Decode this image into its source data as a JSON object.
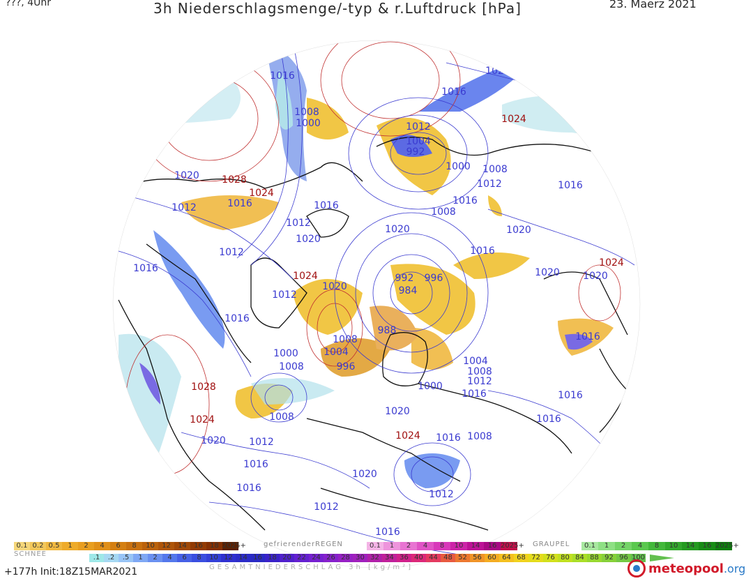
{
  "header": {
    "left": "???, 4Uhr",
    "title": "3h Niederschlagsmenge/-typ & r.Luftdruck [hPa]",
    "date": "23. Maerz 2021"
  },
  "pressure_labels": [
    {
      "t": "1016",
      "c": "#3a3ad0"
    },
    {
      "t": "1008",
      "c": "#3a3ad0"
    },
    {
      "t": "1000",
      "c": "#3a3ad0"
    },
    {
      "t": "1020",
      "c": "#3a3ad0"
    },
    {
      "t": "1016",
      "c": "#3a3ad0"
    },
    {
      "t": "1024",
      "c": "#a01010"
    },
    {
      "t": "1012",
      "c": "#3a3ad0"
    },
    {
      "t": "1004",
      "c": "#3a3ad0"
    },
    {
      "t": "992",
      "c": "#3a3ad0"
    },
    {
      "t": "1000",
      "c": "#3a3ad0"
    },
    {
      "t": "1008",
      "c": "#3a3ad0"
    },
    {
      "t": "1012",
      "c": "#3a3ad0"
    },
    {
      "t": "1016",
      "c": "#3a3ad0"
    },
    {
      "t": "1008",
      "c": "#3a3ad0"
    },
    {
      "t": "1016",
      "c": "#3a3ad0"
    },
    {
      "t": "1020",
      "c": "#3a3ad0"
    },
    {
      "t": "1028",
      "c": "#a01010"
    },
    {
      "t": "1024",
      "c": "#a01010"
    },
    {
      "t": "1016",
      "c": "#3a3ad0"
    },
    {
      "t": "1012",
      "c": "#3a3ad0"
    },
    {
      "t": "1016",
      "c": "#3a3ad0"
    },
    {
      "t": "1012",
      "c": "#3a3ad0"
    },
    {
      "t": "1020",
      "c": "#3a3ad0"
    },
    {
      "t": "1020",
      "c": "#3a3ad0"
    },
    {
      "t": "1016",
      "c": "#3a3ad0"
    },
    {
      "t": "1012",
      "c": "#3a3ad0"
    },
    {
      "t": "1016",
      "c": "#3a3ad0"
    },
    {
      "t": "1012",
      "c": "#3a3ad0"
    },
    {
      "t": "1024",
      "c": "#a01010"
    },
    {
      "t": "1020",
      "c": "#3a3ad0"
    },
    {
      "t": "992",
      "c": "#3a3ad0"
    },
    {
      "t": "996",
      "c": "#3a3ad0"
    },
    {
      "t": "984",
      "c": "#3a3ad0"
    },
    {
      "t": "1020",
      "c": "#3a3ad0"
    },
    {
      "t": "1020",
      "c": "#3a3ad0"
    },
    {
      "t": "1024",
      "c": "#a01010"
    },
    {
      "t": "1016",
      "c": "#3a3ad0"
    },
    {
      "t": "1020",
      "c": "#3a3ad0"
    },
    {
      "t": "1016",
      "c": "#3a3ad0"
    },
    {
      "t": "1008",
      "c": "#3a3ad0"
    },
    {
      "t": "1004",
      "c": "#3a3ad0"
    },
    {
      "t": "996",
      "c": "#3a3ad0"
    },
    {
      "t": "988",
      "c": "#3a3ad0"
    },
    {
      "t": "1000",
      "c": "#3a3ad0"
    },
    {
      "t": "1008",
      "c": "#3a3ad0"
    },
    {
      "t": "1004",
      "c": "#3a3ad0"
    },
    {
      "t": "1008",
      "c": "#3a3ad0"
    },
    {
      "t": "1012",
      "c": "#3a3ad0"
    },
    {
      "t": "1000",
      "c": "#3a3ad0"
    },
    {
      "t": "1016",
      "c": "#3a3ad0"
    },
    {
      "t": "1016",
      "c": "#3a3ad0"
    },
    {
      "t": "1016",
      "c": "#3a3ad0"
    },
    {
      "t": "1028",
      "c": "#a01010"
    },
    {
      "t": "1024",
      "c": "#a01010"
    },
    {
      "t": "1008",
      "c": "#3a3ad0"
    },
    {
      "t": "1020",
      "c": "#3a3ad0"
    },
    {
      "t": "1020",
      "c": "#3a3ad0"
    },
    {
      "t": "1012",
      "c": "#3a3ad0"
    },
    {
      "t": "1024",
      "c": "#a01010"
    },
    {
      "t": "1016",
      "c": "#3a3ad0"
    },
    {
      "t": "1008",
      "c": "#3a3ad0"
    },
    {
      "t": "1016",
      "c": "#3a3ad0"
    },
    {
      "t": "1016",
      "c": "#3a3ad0"
    },
    {
      "t": "1020",
      "c": "#3a3ad0"
    },
    {
      "t": "1012",
      "c": "#3a3ad0"
    },
    {
      "t": "1012",
      "c": "#3a3ad0"
    },
    {
      "t": "1016",
      "c": "#3a3ad0"
    }
  ],
  "legend": {
    "snow_label": "SCHNEE",
    "snow_values": [
      "0.1",
      "0.2",
      "0.5",
      "1",
      "2",
      "4",
      "6",
      "8",
      "10",
      "12",
      "14",
      "16",
      "18",
      "2025+"
    ],
    "snow_colors": [
      "#f5d67a",
      "#f2c75a",
      "#f0b840",
      "#eeab2a",
      "#e89e20",
      "#e08f18",
      "#d47f12",
      "#c8700e",
      "#bb620b",
      "#ae5509",
      "#a04806",
      "#923b04",
      "#843003",
      "#5a2002"
    ],
    "freezing_label": "gefrierenderREGEN",
    "freezing_values": [
      "0.1",
      "1",
      "2",
      "4",
      "8",
      "10",
      "14",
      "16",
      "2025+"
    ],
    "freezing_colors": [
      "#f4b4e6",
      "#ee94dc",
      "#e874d2",
      "#e054c6",
      "#d838ba",
      "#cc24a8",
      "#bc1296",
      "#a80884",
      "#c0104a"
    ],
    "graupel_label": "GRAUPEL",
    "graupel_values": [
      "0.1",
      "1",
      "2",
      "4",
      "8",
      "10",
      "14",
      "16",
      "2025+"
    ],
    "graupel_colors": [
      "#a8e8a0",
      "#8ee084",
      "#74d468",
      "#5ac84e",
      "#42b83a",
      "#32a82c",
      "#249a20",
      "#188c16",
      "#0e7e0e"
    ],
    "total_values": [
      ".1",
      ".2",
      ".5",
      "1",
      "2",
      "4",
      "6",
      "8",
      "10",
      "12",
      "14",
      "16",
      "18",
      "20",
      "22",
      "24",
      "26",
      "28",
      "30",
      "32",
      "34",
      "36",
      "40",
      "44",
      "48",
      "52",
      "56",
      "60",
      "64",
      "68",
      "72",
      "76",
      "80",
      "84",
      "88",
      "92",
      "96",
      "100"
    ],
    "total_colors": [
      "#9ee8e8",
      "#a6d8f2",
      "#98c4f6",
      "#7fa8f4",
      "#6a90f0",
      "#5478ec",
      "#4660e6",
      "#3a4ee0",
      "#3340d8",
      "#3030d0",
      "#2c2cc8",
      "#2a2ac4",
      "#3a22c8",
      "#5020cc",
      "#6420d0",
      "#7620d0",
      "#8620cc",
      "#9620c4",
      "#a020bc",
      "#b020a8",
      "#c0209a",
      "#d0208a",
      "#dc2878",
      "#e43a60",
      "#e85a40",
      "#ec7830",
      "#f09428",
      "#f4ac22",
      "#f4c020",
      "#f0d21e",
      "#e4dc1c",
      "#d2e01c",
      "#c0e020",
      "#aade28",
      "#98d830",
      "#86d03a",
      "#74c844",
      "#62c04e"
    ],
    "gesamt_label": "GESAMTNIEDERSCHLAG 3h [kg/m²]"
  },
  "footer": {
    "info": "+177h Init:18Z15MAR2021",
    "brand_name": "meteopool",
    "brand_domain": ".org"
  }
}
